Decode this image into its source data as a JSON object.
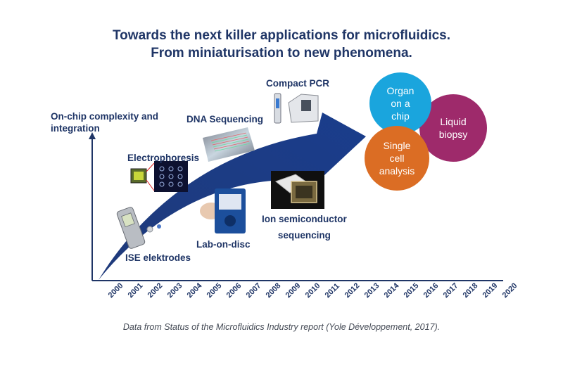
{
  "title": {
    "line1": "Towards the next killer applications for microfluidics.",
    "line2": "From miniaturisation to new phenomena."
  },
  "axis": {
    "y_label_line1": "On-chip complexity and",
    "y_label_line2": "integration",
    "years": [
      "2000",
      "2001",
      "2002",
      "2003",
      "2004",
      "2005",
      "2006",
      "2007",
      "2008",
      "2009",
      "2010",
      "2011",
      "2012",
      "2013",
      "2014",
      "2015",
      "2016",
      "2017",
      "2018",
      "2019",
      "2020"
    ]
  },
  "milestones": {
    "ise": "ISE elektrodes",
    "electrophoresis": "Electrophoresis",
    "dna": "DNA Sequencing",
    "pcr": "Compact PCR",
    "lab_on_disc": "Lab-on-disc",
    "ion_line1": "Ion semiconductor",
    "ion_line2": "sequencing"
  },
  "applications": {
    "organ": [
      "Organ",
      "on a",
      "chip"
    ],
    "liquid": [
      "Liquid",
      "biopsy"
    ],
    "single": [
      "Single",
      "cell",
      "analysis"
    ]
  },
  "colors": {
    "navy": "#1f3566",
    "organ": "#1aa5dd",
    "liquid": "#9e2a6b",
    "single": "#db6d24"
  },
  "footnote": "Data from Status of the Microfluidics Industry report (Yole Développement, 2017)."
}
